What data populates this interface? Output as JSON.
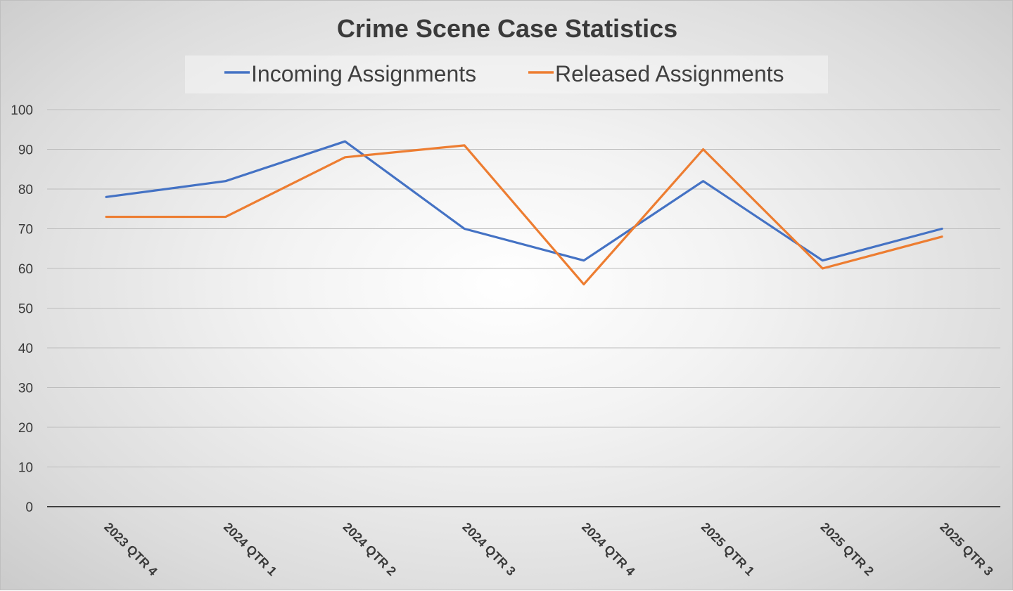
{
  "chart_data": {
    "type": "line",
    "title": "Crime Scene Case Statistics",
    "xlabel": "",
    "ylabel": "",
    "categories": [
      "2023 QTR 4",
      "2024 QTR 1",
      "2024 QTR 2",
      "2024 QTR 3",
      "2024 QTR 4",
      "2025 QTR 1",
      "2025 QTR 2",
      "2025 QTR 3"
    ],
    "ylim": [
      0,
      100
    ],
    "yticks": [
      "0",
      "10",
      "20",
      "30",
      "40",
      "50",
      "60",
      "70",
      "80",
      "90",
      "100"
    ],
    "grid": true,
    "legend_position": "top",
    "series": [
      {
        "name": "Incoming Assignments",
        "color": "#4472C4",
        "values": [
          78,
          82,
          92,
          70,
          62,
          82,
          62,
          70
        ]
      },
      {
        "name": "Released Assignments",
        "color": "#ED7D31",
        "values": [
          73,
          73,
          88,
          91,
          56,
          90,
          60,
          68
        ]
      }
    ]
  }
}
